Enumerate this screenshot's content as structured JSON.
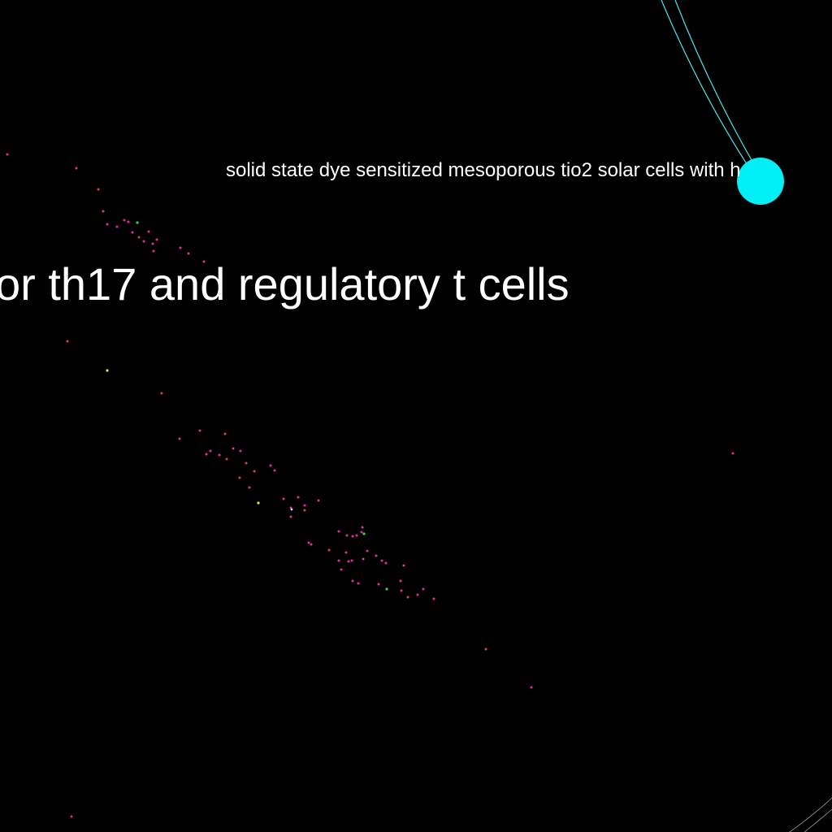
{
  "graph": {
    "labels": {
      "paper_solar": "solid state dye sensitized mesoporous tio2 solar cells with h",
      "paper_th17": "or th17 and regulatory t cells"
    },
    "colors": {
      "background": "#000000",
      "label_text": "#ffffff",
      "highlight_node": "#00f0f5",
      "edge": "#49e6ec",
      "edge_faint": "#9a9a9a",
      "node_default": "#e0309a",
      "node_green": "#39d24a",
      "node_yellow": "#f2e23a"
    }
  }
}
